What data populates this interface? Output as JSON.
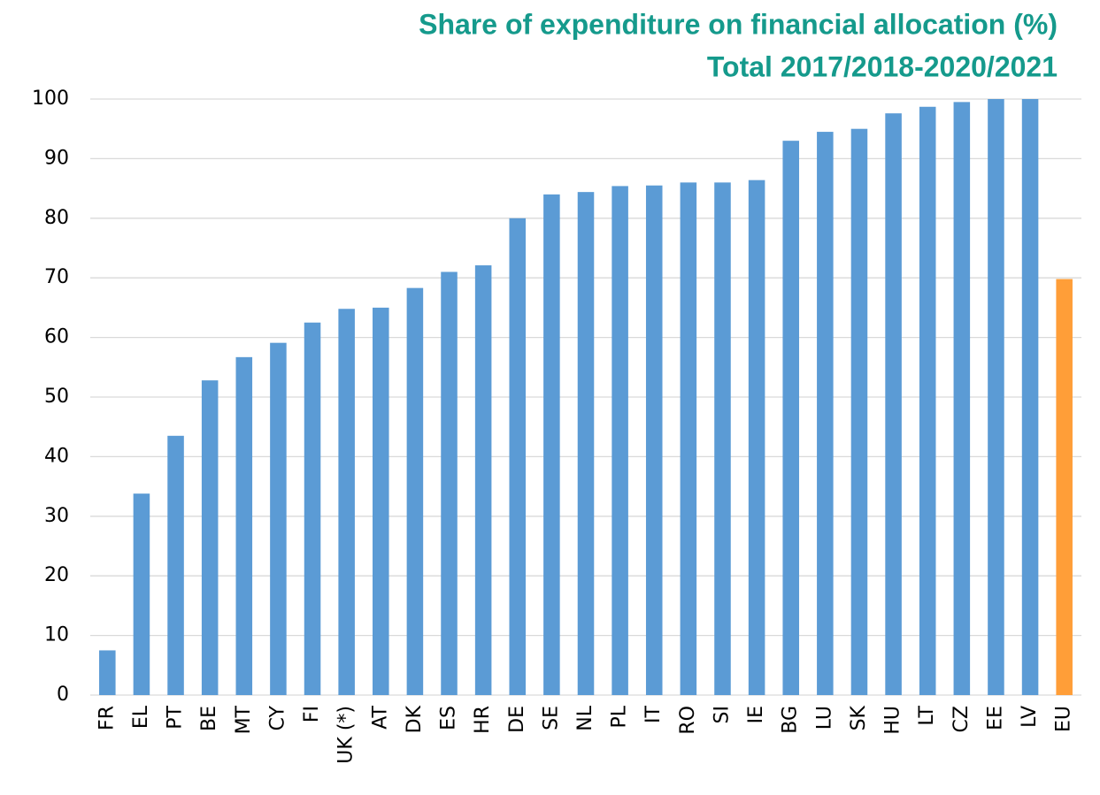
{
  "chart_data": {
    "type": "bar",
    "title": "Share of expenditure on financial allocation (%)",
    "subtitle": "Total 2017/2018-2020/2021",
    "categories": [
      "FR",
      "EL",
      "PT",
      "BE",
      "MT",
      "CY",
      "FI",
      "UK (*)",
      "AT",
      "DK",
      "ES",
      "HR",
      "DE",
      "SE",
      "NL",
      "PL",
      "IT",
      "RO",
      "SI",
      "IE",
      "BG",
      "LU",
      "SK",
      "HU",
      "LT",
      "CZ",
      "EE",
      "LV",
      "EU"
    ],
    "values": [
      7.5,
      33.8,
      43.5,
      52.8,
      56.7,
      59.1,
      62.5,
      64.8,
      65.0,
      68.3,
      71.0,
      72.1,
      80.0,
      84.0,
      84.4,
      85.4,
      85.5,
      86.0,
      86.0,
      86.4,
      93.0,
      94.5,
      95.0,
      97.6,
      98.7,
      99.5,
      100,
      100,
      69.8
    ],
    "colors": [
      "#5b9bd5",
      "#5b9bd5",
      "#5b9bd5",
      "#5b9bd5",
      "#5b9bd5",
      "#5b9bd5",
      "#5b9bd5",
      "#5b9bd5",
      "#5b9bd5",
      "#5b9bd5",
      "#5b9bd5",
      "#5b9bd5",
      "#5b9bd5",
      "#5b9bd5",
      "#5b9bd5",
      "#5b9bd5",
      "#5b9bd5",
      "#5b9bd5",
      "#5b9bd5",
      "#5b9bd5",
      "#5b9bd5",
      "#5b9bd5",
      "#5b9bd5",
      "#5b9bd5",
      "#5b9bd5",
      "#5b9bd5",
      "#5b9bd5",
      "#5b9bd5",
      "#ff9e38"
    ],
    "ylim": [
      0,
      100
    ],
    "yticks": [
      0,
      10,
      20,
      30,
      40,
      50,
      60,
      70,
      80,
      90,
      100
    ],
    "grid": true
  }
}
